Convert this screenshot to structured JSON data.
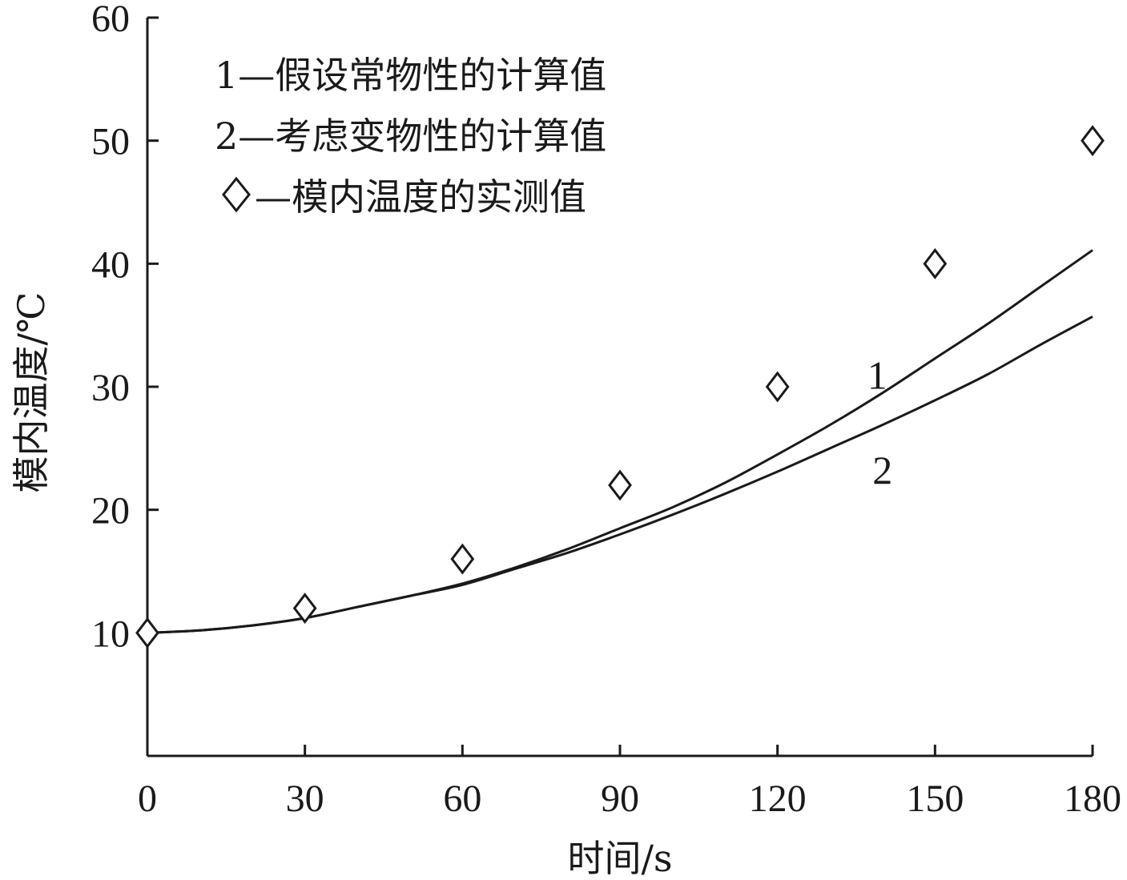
{
  "chart_data": {
    "type": "line",
    "xlabel": "时间/s",
    "ylabel": "模内温度/℃",
    "xlim": [
      0,
      180
    ],
    "ylim": [
      0,
      60
    ],
    "x_ticks": [
      "0",
      "30",
      "60",
      "90",
      "120",
      "150",
      "180"
    ],
    "x_tick_values": [
      0,
      30,
      60,
      90,
      120,
      150,
      180
    ],
    "y_ticks": [
      "10",
      "20",
      "30",
      "40",
      "50",
      "60"
    ],
    "y_tick_values": [
      10,
      20,
      30,
      40,
      50,
      60
    ],
    "grid": false,
    "legend_position": "top-left",
    "legend": [
      "1—假设常物性的计算值",
      "2—考虑变物性的计算值",
      "—模内温度的实测值"
    ],
    "series": [
      {
        "name": "1",
        "style": "line",
        "x": [
          0,
          10,
          20,
          30,
          40,
          50,
          60,
          70,
          80,
          90,
          100,
          110,
          120,
          130,
          140,
          150,
          160,
          170,
          180
        ],
        "y": [
          10,
          10.2,
          10.6,
          11.2,
          12.1,
          13.0,
          14.0,
          15.3,
          16.8,
          18.5,
          20.2,
          22.2,
          24.5,
          26.9,
          29.5,
          32.3,
          35.1,
          38.1,
          41.1
        ]
      },
      {
        "name": "2",
        "style": "line",
        "x": [
          0,
          10,
          20,
          30,
          40,
          50,
          60,
          70,
          80,
          90,
          100,
          110,
          120,
          130,
          140,
          150,
          160,
          170,
          180
        ],
        "y": [
          10,
          10.2,
          10.6,
          11.2,
          12.1,
          13.0,
          13.9,
          15.2,
          16.5,
          18.0,
          19.6,
          21.3,
          23.1,
          25.0,
          26.9,
          28.9,
          31.0,
          33.4,
          35.7
        ]
      },
      {
        "name": "模内温度的实测值",
        "style": "marker-diamond",
        "x": [
          0,
          30,
          60,
          90,
          120,
          150,
          180
        ],
        "y": [
          10,
          12,
          16,
          22,
          30,
          40,
          50
        ]
      }
    ],
    "curve_labels": [
      {
        "text": "1",
        "x": 139,
        "y": 31
      },
      {
        "text": "2",
        "x": 140,
        "y": 23.3
      }
    ]
  }
}
